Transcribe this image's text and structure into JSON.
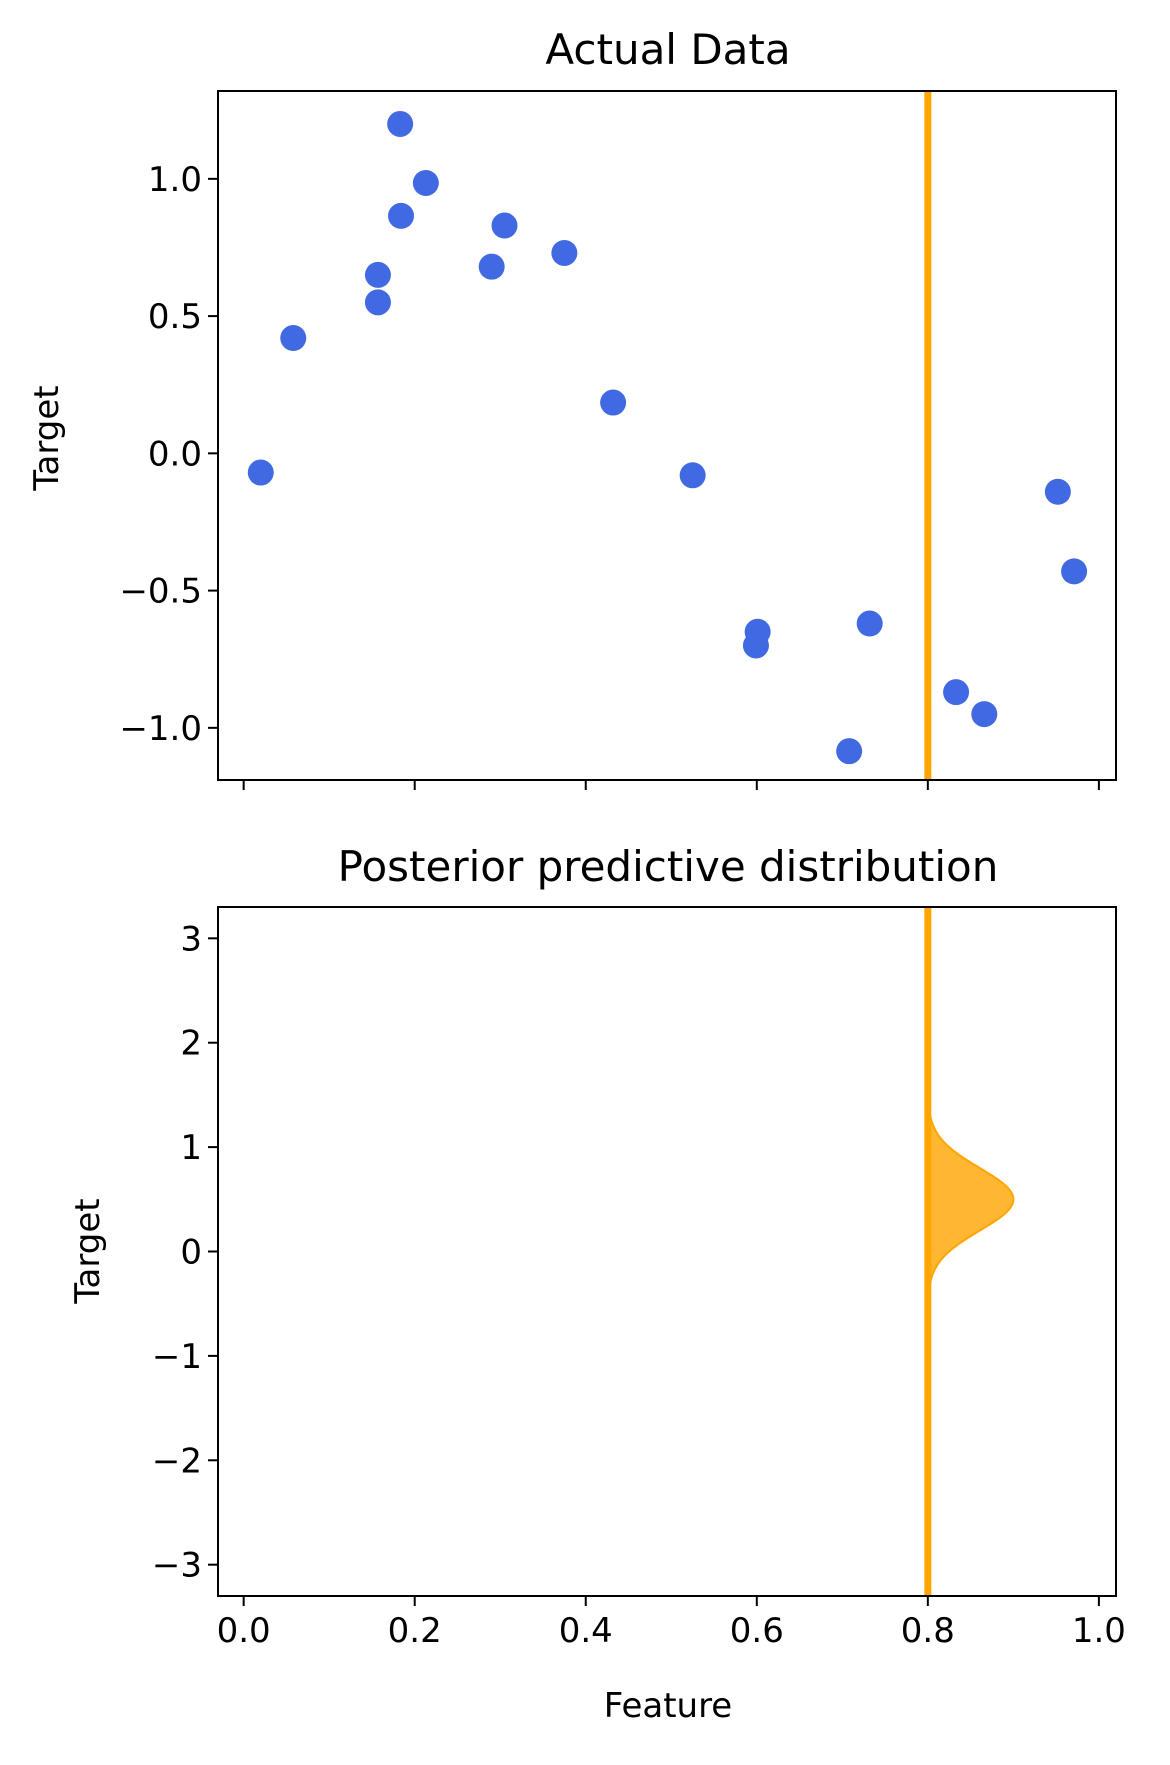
{
  "chart_data": [
    {
      "type": "scatter",
      "title": "Actual Data",
      "xlabel": "",
      "ylabel": "Target",
      "xlim": [
        -0.03,
        1.02
      ],
      "ylim": [
        -1.19,
        1.32
      ],
      "xticks": [
        0.0,
        0.2,
        0.4,
        0.6,
        0.8,
        1.0
      ],
      "xtick_labels_visible": false,
      "yticks": [
        -1.0,
        -0.5,
        0.0,
        0.5,
        1.0
      ],
      "ytick_labels": [
        "−1.0",
        "−0.5",
        "0.0",
        "0.5",
        "1.0"
      ],
      "grid": false,
      "series": [
        {
          "color": "#4169e1",
          "points": [
            {
              "x": 0.02,
              "y": -0.07
            },
            {
              "x": 0.058,
              "y": 0.42
            },
            {
              "x": 0.157,
              "y": 0.65
            },
            {
              "x": 0.157,
              "y": 0.55
            },
            {
              "x": 0.183,
              "y": 1.2
            },
            {
              "x": 0.184,
              "y": 0.865
            },
            {
              "x": 0.213,
              "y": 0.985
            },
            {
              "x": 0.29,
              "y": 0.68
            },
            {
              "x": 0.305,
              "y": 0.83
            },
            {
              "x": 0.375,
              "y": 0.73
            },
            {
              "x": 0.432,
              "y": 0.185
            },
            {
              "x": 0.525,
              "y": -0.08
            },
            {
              "x": 0.599,
              "y": -0.7
            },
            {
              "x": 0.601,
              "y": -0.65
            },
            {
              "x": 0.708,
              "y": -1.085
            },
            {
              "x": 0.732,
              "y": -0.62
            },
            {
              "x": 0.833,
              "y": -0.87
            },
            {
              "x": 0.866,
              "y": -0.95
            },
            {
              "x": 0.952,
              "y": -0.14
            },
            {
              "x": 0.971,
              "y": -0.43
            }
          ]
        }
      ],
      "vline": {
        "x": 0.8,
        "color": "#ffa500"
      }
    },
    {
      "type": "area",
      "title": "Posterior predictive distribution",
      "xlabel": "Feature",
      "ylabel": "Target",
      "xlim": [
        -0.03,
        1.02
      ],
      "ylim": [
        -3.3,
        3.3
      ],
      "xticks": [
        0.0,
        0.2,
        0.4,
        0.6,
        0.8,
        1.0
      ],
      "xtick_labels": [
        "0.0",
        "0.2",
        "0.4",
        "0.6",
        "0.8",
        "1.0"
      ],
      "yticks": [
        -3,
        -2,
        -1,
        0,
        1,
        2,
        3
      ],
      "ytick_labels": [
        "−3",
        "−2",
        "−1",
        "0",
        "1",
        "2",
        "3"
      ],
      "grid": false,
      "vline": {
        "x": 0.8,
        "color": "#ffa500"
      },
      "density": {
        "anchor_x": 0.8,
        "mean": 0.5,
        "sd": 0.3,
        "y_range": [
          -0.6,
          1.6
        ],
        "peak_width": 0.1,
        "color": "#ffa500",
        "fill_opacity": 0.8
      }
    }
  ]
}
